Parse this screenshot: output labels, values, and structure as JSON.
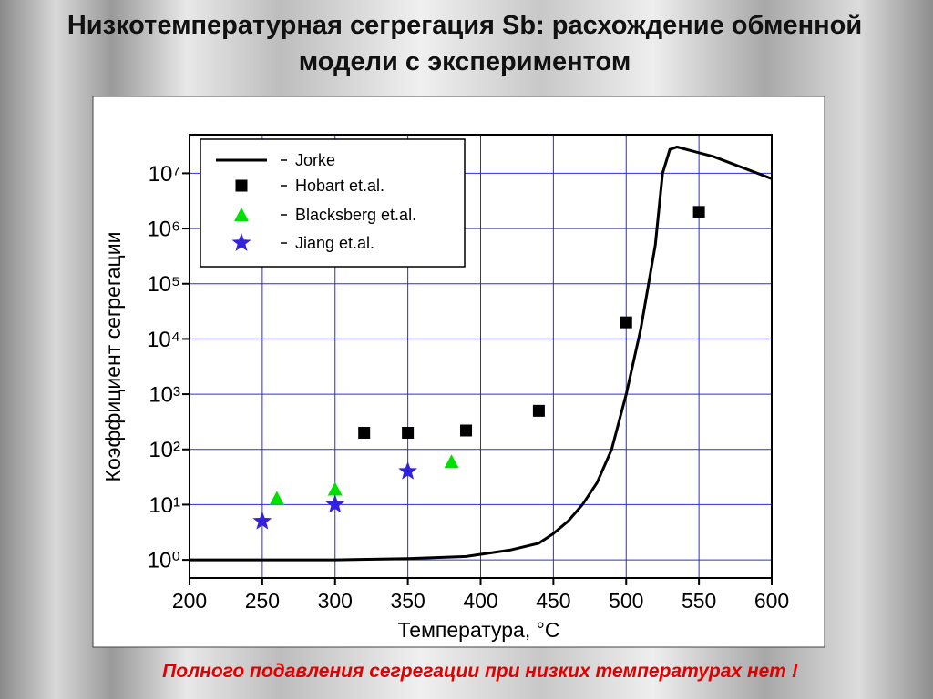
{
  "chart_data": {
    "type": "line",
    "title": "Низкотемпературная сегрегация Sb: расхождение обменной модели с экспериментом",
    "x_label": "Температура, °C",
    "y_label": "Коэффициент сегрегации",
    "annotation": "Полного подавления сегрегации при низких температурах нет !",
    "log_y": true,
    "grid": true,
    "grid_color": "#2b2bd9",
    "legend": "upper-left",
    "xlim": [
      200,
      600
    ],
    "xticks": [
      200,
      250,
      300,
      350,
      400,
      450,
      500,
      550,
      600
    ],
    "ylim": [
      0.47,
      50000000
    ],
    "yticks": [
      {
        "value": 1,
        "label": "10⁰"
      },
      {
        "value": 10,
        "label": "10¹"
      },
      {
        "value": 100,
        "label": "10²"
      },
      {
        "value": 1000,
        "label": "10³"
      },
      {
        "value": 10000,
        "label": "10⁴"
      },
      {
        "value": 100000,
        "label": "10⁵"
      },
      {
        "value": 1000000,
        "label": "10⁶"
      },
      {
        "value": 10000000,
        "label": "10⁷"
      }
    ],
    "series": [
      {
        "name": "Jorke",
        "color": "#000000",
        "marker": "line",
        "x": [
          200,
          300,
          350,
          390,
          420,
          440,
          450,
          460,
          470,
          480,
          490,
          500,
          510,
          520,
          525,
          530,
          535,
          560,
          600
        ],
        "values": [
          1,
          1,
          1.05,
          1.15,
          1.5,
          2,
          3,
          5,
          10,
          25,
          100,
          1000,
          15000,
          500000,
          10000000,
          27000000,
          30000000,
          20000000,
          8000000
        ]
      },
      {
        "name": "Hobart et.al.",
        "color": "#000000",
        "marker": "square",
        "x": [
          320,
          350,
          390,
          440,
          500,
          550
        ],
        "values": [
          200,
          200,
          220,
          500,
          20000,
          2000000
        ]
      },
      {
        "name": "Blacksberg et.al.",
        "color": "#00e000",
        "marker": "triangle",
        "x": [
          260,
          300,
          380
        ],
        "values": [
          13,
          19,
          60
        ]
      },
      {
        "name": "Jiang et.al.",
        "color": "#3322dd",
        "marker": "star",
        "x": [
          250,
          300,
          350
        ],
        "values": [
          5,
          10,
          40
        ]
      }
    ]
  }
}
